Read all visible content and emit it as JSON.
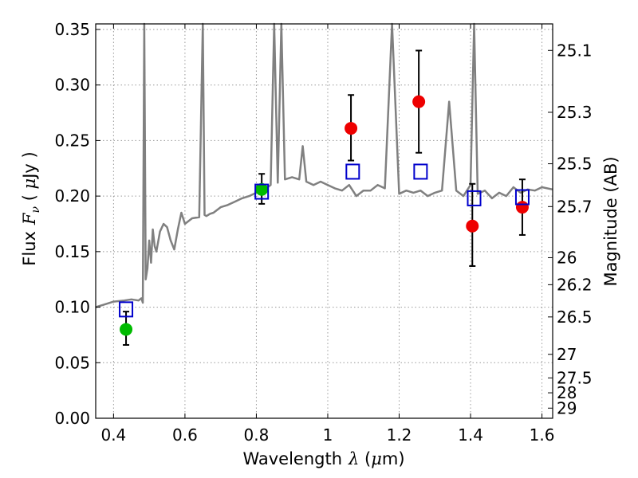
{
  "chart_data": {
    "type": "scatter",
    "xlabel": "Wavelength",
    "xlabel_symbol": "λ",
    "xlabel_unit_open": " (",
    "xlabel_unit_mu": "μ",
    "xlabel_unit_close": "m)",
    "ylabel": "Flux",
    "ylabel_symbol": "F",
    "ylabel_symbol_sub": "ν",
    "ylabel_unit_open": " ( ",
    "ylabel_unit_mu": "μ",
    "ylabel_unit_close": "Jy )",
    "y2label": "Magnitude (AB)",
    "xlim": [
      0.35,
      1.63
    ],
    "ylim": [
      0.0,
      0.355
    ],
    "grid": true,
    "x_ticks": [
      0.4,
      0.6,
      0.8,
      1.0,
      1.2,
      1.4,
      1.6
    ],
    "x_tick_labels": [
      "0.4",
      "0.6",
      "0.8",
      "1",
      "1.2",
      "1.4",
      "1.6"
    ],
    "y_ticks": [
      0.0,
      0.05,
      0.1,
      0.15,
      0.2,
      0.25,
      0.3,
      0.35
    ],
    "y_tick_labels": [
      "0.00",
      "0.05",
      "0.10",
      "0.15",
      "0.20",
      "0.25",
      "0.30",
      "0.35"
    ],
    "y2_tick_labels": [
      "25.1",
      "25.3",
      "25.5",
      "25.7",
      "26",
      "26.2",
      "26.5",
      "27",
      "27.5",
      "28",
      "29"
    ],
    "colors": {
      "model_spectrum": "#808080",
      "observed_optical": "#00bb00",
      "observed_nir": "#ee0000",
      "model_photometry": "#0000cc",
      "errorbar": "#000000",
      "grid": "#999999"
    },
    "model_spectrum": {
      "x": [
        0.35,
        0.38,
        0.4,
        0.43,
        0.45,
        0.47,
        0.478,
        0.482,
        0.486,
        0.49,
        0.495,
        0.5,
        0.505,
        0.51,
        0.515,
        0.52,
        0.53,
        0.54,
        0.55,
        0.56,
        0.57,
        0.58,
        0.59,
        0.6,
        0.62,
        0.64,
        0.65,
        0.655,
        0.66,
        0.67,
        0.68,
        0.7,
        0.72,
        0.74,
        0.76,
        0.78,
        0.8,
        0.82,
        0.84,
        0.85,
        0.86,
        0.87,
        0.88,
        0.9,
        0.92,
        0.93,
        0.94,
        0.96,
        0.98,
        1.0,
        1.02,
        1.04,
        1.06,
        1.08,
        1.1,
        1.12,
        1.14,
        1.16,
        1.18,
        1.2,
        1.22,
        1.24,
        1.26,
        1.28,
        1.3,
        1.32,
        1.34,
        1.36,
        1.38,
        1.4,
        1.41,
        1.42,
        1.44,
        1.46,
        1.48,
        1.5,
        1.52,
        1.54,
        1.56,
        1.58,
        1.6,
        1.63
      ],
      "y": [
        0.1,
        0.103,
        0.105,
        0.106,
        0.107,
        0.106,
        0.108,
        0.104,
        0.355,
        0.125,
        0.135,
        0.16,
        0.14,
        0.17,
        0.155,
        0.15,
        0.168,
        0.175,
        0.172,
        0.16,
        0.152,
        0.17,
        0.185,
        0.175,
        0.18,
        0.181,
        0.355,
        0.183,
        0.182,
        0.184,
        0.185,
        0.19,
        0.192,
        0.195,
        0.198,
        0.2,
        0.203,
        0.205,
        0.21,
        0.355,
        0.212,
        0.355,
        0.215,
        0.217,
        0.215,
        0.245,
        0.213,
        0.21,
        0.213,
        0.21,
        0.207,
        0.205,
        0.21,
        0.2,
        0.205,
        0.205,
        0.21,
        0.207,
        0.355,
        0.202,
        0.205,
        0.203,
        0.205,
        0.2,
        0.203,
        0.205,
        0.285,
        0.205,
        0.2,
        0.21,
        0.355,
        0.202,
        0.205,
        0.198,
        0.203,
        0.2,
        0.208,
        0.203,
        0.206,
        0.205,
        0.208,
        0.206
      ]
    },
    "series": [
      {
        "marker": "circle-green",
        "x": [
          0.435,
          0.815
        ],
        "y": [
          0.08,
          0.206
        ],
        "yerr_low": [
          0.066,
          0.193
        ],
        "yerr_high": [
          0.096,
          0.22
        ]
      },
      {
        "marker": "circle-red",
        "x": [
          1.065,
          1.255,
          1.405,
          1.545
        ],
        "y": [
          0.261,
          0.285,
          0.173,
          0.19
        ],
        "yerr_low": [
          0.232,
          0.239,
          0.137,
          0.165
        ],
        "yerr_high": [
          0.291,
          0.331,
          0.211,
          0.215
        ]
      },
      {
        "marker": "square-blue",
        "x": [
          0.435,
          0.815,
          1.07,
          1.26,
          1.41,
          1.545
        ],
        "y": [
          0.098,
          0.204,
          0.222,
          0.222,
          0.198,
          0.199
        ]
      }
    ]
  }
}
